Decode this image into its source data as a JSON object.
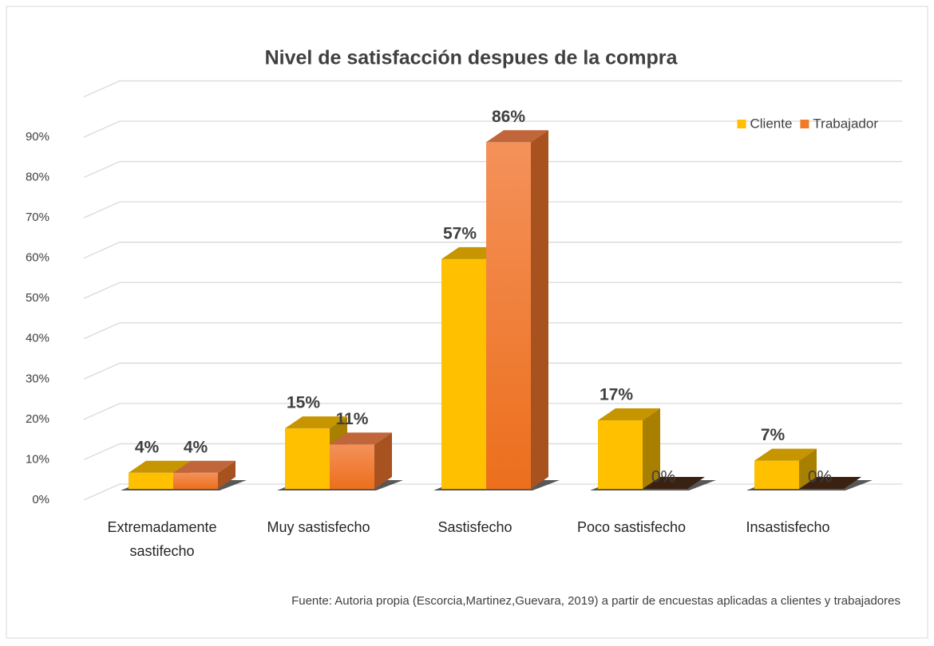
{
  "chart_data": {
    "type": "bar3d",
    "title": "Nivel de satisfacción despues de la compra",
    "categories": [
      "Extremadamente sastifecho",
      "Muy sastisfecho",
      "Sastisfecho",
      "Poco sastisfecho",
      "Insastisfecho"
    ],
    "series": [
      {
        "name": "Cliente",
        "color": "#ffc000",
        "values": [
          4,
          15,
          57,
          17,
          7
        ],
        "value_labels": [
          "4%",
          "15%",
          "57%",
          "17%",
          "7%"
        ]
      },
      {
        "name": "Trabajador",
        "color": "#f07a27",
        "values": [
          4,
          11,
          86,
          0,
          0
        ],
        "value_labels": [
          "4%",
          "11%",
          "86%",
          "0%",
          "0%"
        ]
      }
    ],
    "ylim": [
      0,
      100
    ],
    "yticks": [
      {
        "value": 0,
        "label": "0%"
      },
      {
        "value": 10,
        "label": "10%"
      },
      {
        "value": 20,
        "label": "20%"
      },
      {
        "value": 30,
        "label": "30%"
      },
      {
        "value": 40,
        "label": "40%"
      },
      {
        "value": 50,
        "label": "50%"
      },
      {
        "value": 60,
        "label": "60%"
      },
      {
        "value": 70,
        "label": "70%"
      },
      {
        "value": 80,
        "label": "80%"
      },
      {
        "value": 90,
        "label": "90%"
      }
    ],
    "grid": true,
    "legend": "top-right",
    "source": "Fuente: Autoria propia (Escorcia,Martinez,Guevara, 2019) a partir de encuestas aplicadas a clientes y trabajadores"
  }
}
